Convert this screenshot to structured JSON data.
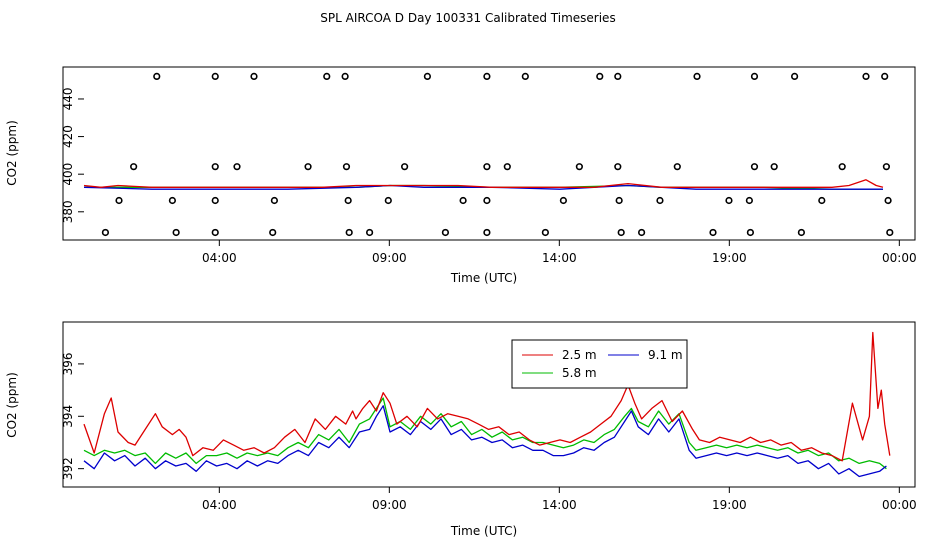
{
  "title": "SPL AIRCOA D  Day 100331  Calibrated Timeseries",
  "colors": {
    "s25": "#dd0000",
    "s58": "#00bb00",
    "s91": "#0000cc",
    "frame": "#000000"
  },
  "chart_data": [
    {
      "type": "scatter",
      "xlabel": "Time (UTC)",
      "ylabel": "CO2 (ppm)",
      "xlim": [
        0,
        24
      ],
      "ylim": [
        365,
        457
      ],
      "x_ticks": [
        {
          "x": 3.98,
          "label": "04:00"
        },
        {
          "x": 8.98,
          "label": "09:00"
        },
        {
          "x": 13.98,
          "label": "14:00"
        },
        {
          "x": 18.98,
          "label": "19:00"
        },
        {
          "x": 23.98,
          "label": "00:00"
        }
      ],
      "y_ticks": [
        380,
        400,
        420,
        440
      ],
      "point_groups": [
        {
          "y": 452,
          "x": [
            2.14,
            3.86,
            5.0,
            7.14,
            7.68,
            10.1,
            11.85,
            12.98,
            15.17,
            15.7,
            18.03,
            19.72,
            20.9,
            23.0,
            23.55
          ]
        },
        {
          "y": 404,
          "x": [
            1.46,
            3.86,
            4.5,
            6.59,
            7.72,
            9.43,
            11.85,
            12.45,
            14.57,
            15.7,
            17.45,
            19.72,
            20.3,
            22.3,
            23.6
          ]
        },
        {
          "y": 386,
          "x": [
            1.03,
            2.6,
            3.86,
            5.6,
            7.77,
            8.95,
            11.15,
            11.85,
            14.1,
            15.74,
            16.94,
            18.97,
            19.57,
            21.7,
            23.65
          ]
        },
        {
          "y": 369,
          "x": [
            0.63,
            2.71,
            3.86,
            5.55,
            7.8,
            8.4,
            10.63,
            11.85,
            13.57,
            15.8,
            16.4,
            18.5,
            19.6,
            21.1,
            23.7
          ]
        }
      ],
      "series": [
        {
          "name": "2.5 m",
          "x": [
            0.0,
            0.5,
            1.0,
            2.0,
            3.0,
            4.0,
            5.0,
            6.0,
            7.0,
            8.0,
            9.0,
            10.0,
            11.0,
            12.0,
            13.0,
            14.0,
            15.0,
            16.0,
            17.0,
            18.0,
            19.0,
            20.0,
            21.0,
            22.0,
            22.5,
            23.0,
            23.3,
            23.5
          ],
          "values": [
            394,
            393,
            394,
            393,
            393,
            393,
            393,
            393,
            393,
            394,
            394,
            394,
            394,
            393,
            393,
            393,
            393,
            395,
            393,
            393,
            393,
            393,
            393,
            393,
            394,
            397,
            394,
            393
          ]
        },
        {
          "name": "5.8 m",
          "x": [
            0.0,
            2.0,
            4.0,
            6.0,
            8.0,
            9.0,
            10.0,
            12.0,
            14.0,
            16.0,
            17.0,
            18.0,
            20.0,
            22.0,
            23.5
          ],
          "values": [
            393,
            393,
            393,
            393,
            393,
            394,
            394,
            393,
            393,
            394,
            393,
            393,
            393,
            392,
            392
          ]
        },
        {
          "name": "9.1 m",
          "x": [
            0.0,
            2.0,
            4.0,
            6.0,
            8.0,
            9.0,
            10.0,
            12.0,
            14.0,
            16.0,
            17.0,
            18.0,
            20.0,
            22.0,
            23.5
          ],
          "values": [
            393,
            392,
            392,
            392,
            393,
            394,
            393,
            393,
            392,
            394,
            393,
            392,
            392,
            392,
            392
          ]
        }
      ]
    },
    {
      "type": "line",
      "xlabel": "Time (UTC)",
      "ylabel": "CO2 (ppm)",
      "xlim": [
        0,
        24
      ],
      "ylim": [
        391.3,
        397.6
      ],
      "x_ticks": [
        {
          "x": 3.98,
          "label": "04:00"
        },
        {
          "x": 8.98,
          "label": "09:00"
        },
        {
          "x": 13.98,
          "label": "14:00"
        },
        {
          "x": 18.98,
          "label": "19:00"
        },
        {
          "x": 23.98,
          "label": "00:00"
        }
      ],
      "y_ticks": [
        392,
        394,
        396
      ],
      "legend": "top-center",
      "series": [
        {
          "name": "2.5 m",
          "x": [
            0.0,
            0.3,
            0.6,
            0.8,
            1.0,
            1.3,
            1.5,
            1.8,
            2.1,
            2.3,
            2.6,
            2.8,
            3.0,
            3.2,
            3.5,
            3.8,
            4.1,
            4.4,
            4.7,
            5.0,
            5.3,
            5.6,
            5.9,
            6.2,
            6.5,
            6.8,
            7.1,
            7.4,
            7.7,
            7.9,
            8.0,
            8.2,
            8.4,
            8.6,
            8.8,
            9.0,
            9.2,
            9.5,
            9.8,
            10.1,
            10.4,
            10.7,
            11.0,
            11.3,
            11.6,
            11.9,
            12.2,
            12.5,
            12.8,
            13.1,
            13.4,
            13.7,
            14.0,
            14.3,
            14.6,
            14.9,
            15.2,
            15.5,
            15.8,
            16.0,
            16.2,
            16.4,
            16.7,
            17.0,
            17.3,
            17.6,
            17.9,
            18.1,
            18.4,
            18.7,
            19.0,
            19.3,
            19.6,
            19.9,
            20.2,
            20.5,
            20.8,
            21.1,
            21.4,
            21.7,
            22.0,
            22.3,
            22.6,
            22.9,
            23.1,
            23.2,
            23.35,
            23.45,
            23.55,
            23.7
          ],
          "values": [
            393.7,
            392.6,
            394.1,
            394.7,
            393.4,
            393.0,
            392.9,
            393.5,
            394.1,
            393.6,
            393.3,
            393.5,
            393.2,
            392.5,
            392.8,
            392.7,
            393.1,
            392.9,
            392.7,
            392.8,
            392.6,
            392.8,
            393.2,
            393.5,
            393.0,
            393.9,
            393.5,
            394.0,
            393.7,
            394.2,
            393.9,
            394.3,
            394.6,
            394.2,
            394.9,
            394.5,
            393.7,
            394.0,
            393.6,
            394.3,
            393.9,
            394.1,
            394.0,
            393.9,
            393.7,
            393.5,
            393.6,
            393.3,
            393.4,
            393.1,
            392.9,
            393.0,
            393.1,
            393.0,
            393.2,
            393.4,
            393.7,
            394.0,
            394.6,
            395.2,
            394.5,
            393.9,
            394.3,
            394.6,
            393.8,
            394.2,
            393.5,
            393.1,
            393.0,
            393.2,
            393.1,
            393.0,
            393.2,
            393.0,
            393.1,
            392.9,
            393.0,
            392.7,
            392.8,
            392.6,
            392.5,
            392.3,
            394.5,
            393.1,
            394.0,
            397.2,
            394.3,
            395.0,
            393.7,
            392.5
          ]
        },
        {
          "name": "5.8 m",
          "x": [
            0.0,
            0.3,
            0.6,
            0.9,
            1.2,
            1.5,
            1.8,
            2.1,
            2.4,
            2.7,
            3.0,
            3.3,
            3.6,
            3.9,
            4.2,
            4.5,
            4.8,
            5.1,
            5.4,
            5.7,
            6.0,
            6.3,
            6.6,
            6.9,
            7.2,
            7.5,
            7.8,
            8.1,
            8.4,
            8.6,
            8.8,
            9.0,
            9.3,
            9.6,
            9.9,
            10.2,
            10.5,
            10.8,
            11.1,
            11.4,
            11.7,
            12.0,
            12.3,
            12.6,
            12.9,
            13.2,
            13.5,
            13.8,
            14.1,
            14.4,
            14.7,
            15.0,
            15.3,
            15.6,
            15.9,
            16.1,
            16.3,
            16.6,
            16.9,
            17.2,
            17.5,
            17.8,
            18.0,
            18.3,
            18.6,
            18.9,
            19.2,
            19.5,
            19.8,
            20.1,
            20.4,
            20.7,
            21.0,
            21.3,
            21.6,
            21.9,
            22.2,
            22.5,
            22.8,
            23.1,
            23.4,
            23.6
          ],
          "values": [
            392.7,
            392.5,
            392.7,
            392.6,
            392.7,
            392.5,
            392.6,
            392.2,
            392.6,
            392.4,
            392.6,
            392.2,
            392.5,
            392.5,
            392.6,
            392.4,
            392.6,
            392.5,
            392.6,
            392.5,
            392.8,
            393.0,
            392.8,
            393.3,
            393.1,
            393.5,
            393.0,
            393.7,
            393.9,
            394.3,
            394.7,
            393.6,
            393.8,
            393.5,
            394.0,
            393.7,
            394.1,
            393.6,
            393.8,
            393.3,
            393.5,
            393.2,
            393.4,
            393.1,
            393.2,
            393.0,
            393.0,
            392.9,
            392.8,
            392.9,
            393.1,
            393.0,
            393.3,
            393.5,
            394.0,
            394.3,
            393.8,
            393.6,
            394.2,
            393.7,
            394.1,
            393.0,
            392.7,
            392.8,
            392.9,
            392.8,
            392.9,
            392.8,
            392.9,
            392.8,
            392.7,
            392.8,
            392.6,
            392.7,
            392.5,
            392.6,
            392.3,
            392.4,
            392.2,
            392.3,
            392.2,
            392.0
          ]
        },
        {
          "name": "9.1 m",
          "x": [
            0.0,
            0.3,
            0.6,
            0.9,
            1.2,
            1.5,
            1.8,
            2.1,
            2.4,
            2.7,
            3.0,
            3.3,
            3.6,
            3.9,
            4.2,
            4.5,
            4.8,
            5.1,
            5.4,
            5.7,
            6.0,
            6.3,
            6.6,
            6.9,
            7.2,
            7.5,
            7.8,
            8.1,
            8.4,
            8.6,
            8.8,
            9.0,
            9.3,
            9.6,
            9.9,
            10.2,
            10.5,
            10.8,
            11.1,
            11.4,
            11.7,
            12.0,
            12.3,
            12.6,
            12.9,
            13.2,
            13.5,
            13.8,
            14.1,
            14.4,
            14.7,
            15.0,
            15.3,
            15.6,
            15.9,
            16.1,
            16.3,
            16.6,
            16.9,
            17.2,
            17.5,
            17.8,
            18.0,
            18.3,
            18.6,
            18.9,
            19.2,
            19.5,
            19.8,
            20.1,
            20.4,
            20.7,
            21.0,
            21.3,
            21.6,
            21.9,
            22.2,
            22.5,
            22.8,
            23.1,
            23.4,
            23.6
          ],
          "values": [
            392.3,
            392.0,
            392.6,
            392.3,
            392.5,
            392.1,
            392.4,
            392.0,
            392.3,
            392.1,
            392.2,
            391.9,
            392.3,
            392.1,
            392.2,
            392.0,
            392.3,
            392.1,
            392.3,
            392.2,
            392.5,
            392.7,
            392.5,
            393.0,
            392.8,
            393.2,
            392.8,
            393.4,
            393.5,
            394.0,
            394.4,
            393.4,
            393.6,
            393.3,
            393.8,
            393.5,
            393.9,
            393.3,
            393.5,
            393.1,
            393.2,
            393.0,
            393.1,
            392.8,
            392.9,
            392.7,
            392.7,
            392.5,
            392.5,
            392.6,
            392.8,
            392.7,
            393.0,
            393.2,
            393.8,
            394.2,
            393.6,
            393.3,
            393.9,
            393.4,
            393.9,
            392.7,
            392.4,
            392.5,
            392.6,
            392.5,
            392.6,
            392.5,
            392.6,
            392.5,
            392.4,
            392.5,
            392.2,
            392.3,
            392.0,
            392.2,
            391.8,
            392.0,
            391.7,
            391.8,
            391.9,
            392.1
          ]
        }
      ]
    }
  ]
}
